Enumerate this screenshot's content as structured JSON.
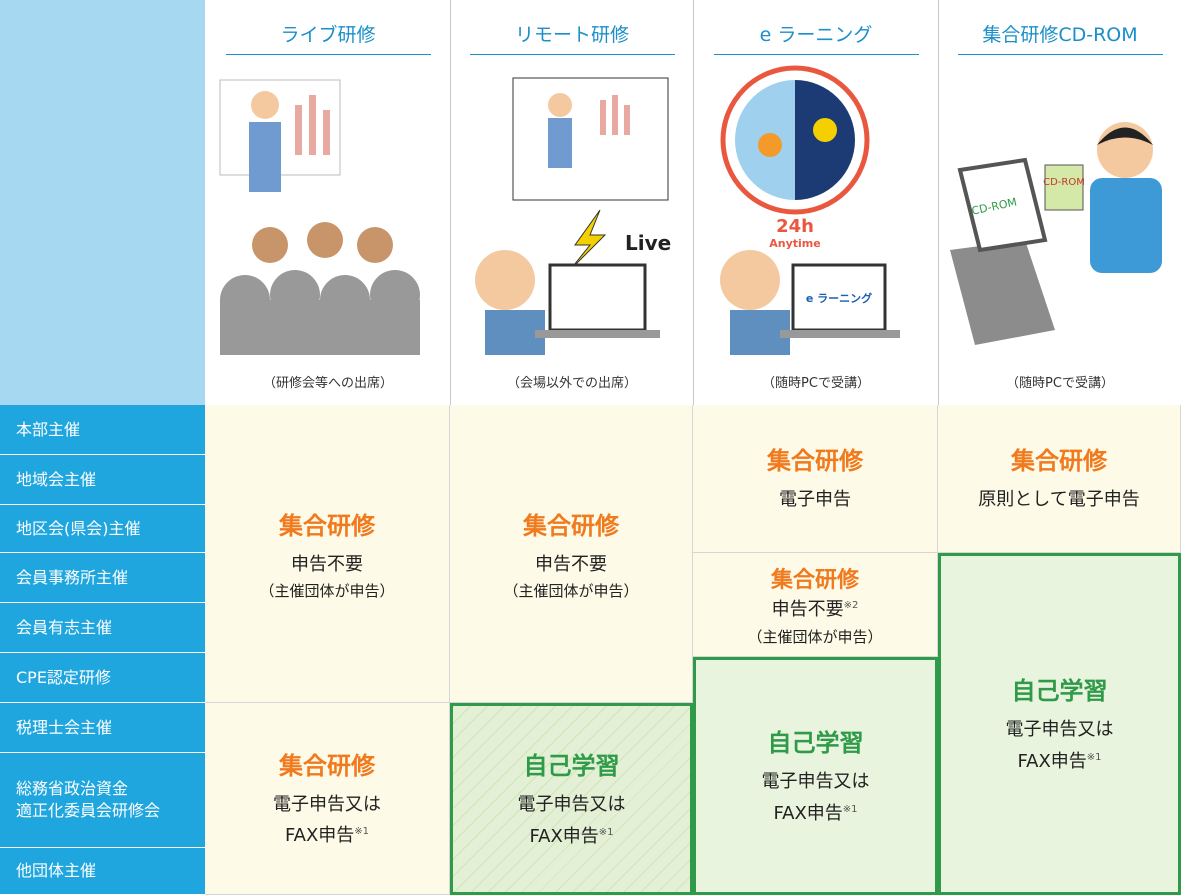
{
  "header": {
    "columns": [
      {
        "title": "ライブ研修",
        "caption": "（研修会等への出席）"
      },
      {
        "title": "リモート研修",
        "caption": "（会場以外での出席）",
        "illustration_text": [
          "Live"
        ]
      },
      {
        "title": "e ラーニング",
        "caption": "（随時PCで受講）",
        "illustration_text": [
          "24h",
          "Anytime",
          "e ラーニング"
        ]
      },
      {
        "title": "集合研修CD-ROM",
        "caption": "（随時PCで受講）",
        "illustration_text": [
          "CD-ROM",
          "CD-ROM"
        ]
      }
    ]
  },
  "row_labels": [
    "本部主催",
    "地域会主催",
    "地区会(県会)主催",
    "会員事務所主催",
    "会員有志主催",
    "CPE認定研修",
    "税理士会主催",
    "総務省政治資金\n適正化委員会研修会",
    "他団体主催"
  ],
  "cells": [
    {
      "heading": "集合研修",
      "lines": [
        "申告不要"
      ],
      "sub": "（主催団体が申告）"
    },
    {
      "heading": "集合研修",
      "lines": [
        "申告不要"
      ],
      "sub": "（主催団体が申告）"
    },
    {
      "heading": "集合研修",
      "lines": [
        "電子申告"
      ]
    },
    {
      "heading": "集合研修",
      "lines": [
        "原則として電子申告"
      ]
    },
    {
      "heading": "集合研修",
      "lines": [
        "申告不要"
      ],
      "note": "※2",
      "sub": "（主催団体が申告）"
    },
    {
      "heading": "集合研修",
      "lines": [
        "電子申告又は",
        "FAX申告"
      ],
      "note": "※1"
    },
    {
      "heading": "自己学習",
      "lines": [
        "電子申告又は",
        "FAX申告"
      ],
      "note": "※1"
    },
    {
      "heading": "自己学習",
      "lines": [
        "電子申告又は",
        "FAX申告"
      ],
      "note": "※1"
    },
    {
      "heading": "自己学習",
      "lines": [
        "電子申告又は",
        "FAX申告"
      ],
      "note": "※1"
    }
  ]
}
